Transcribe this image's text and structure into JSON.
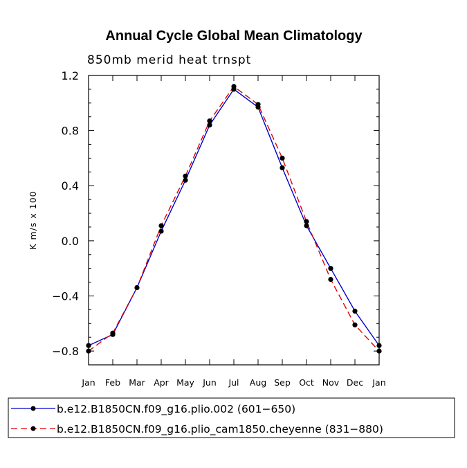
{
  "chart_data": {
    "type": "line",
    "title": "Annual Cycle Global Mean Climatology",
    "subtitle": "850mb merid heat trnspt",
    "xlabel": "",
    "ylabel": "K m/s x 100",
    "categories": [
      "Jan",
      "Feb",
      "Mar",
      "Apr",
      "May",
      "Jun",
      "Jul",
      "Aug",
      "Sep",
      "Oct",
      "Nov",
      "Dec",
      "Jan"
    ],
    "ylim": [
      -0.9,
      1.2
    ],
    "yticks": [
      -0.8,
      -0.4,
      0.0,
      0.4,
      0.8,
      1.2
    ],
    "ytick_labels": [
      "−0.8",
      "−0.4",
      "0.0",
      "0.4",
      "0.8",
      "1.2"
    ],
    "legend_position": "bottom",
    "series": [
      {
        "name": "b.e12.B1850CN.f09_g16.plio.002 (601−650)",
        "color": "#0000cc",
        "dash": "solid",
        "values": [
          -0.76,
          -0.68,
          -0.34,
          0.07,
          0.44,
          0.84,
          1.1,
          0.97,
          0.53,
          0.11,
          -0.2,
          -0.51,
          -0.76
        ]
      },
      {
        "name": "b.e12.B1850CN.f09_g16.plio_cam1850.cheyenne (831−880)",
        "color": "#dd0000",
        "dash": "dashed",
        "values": [
          -0.8,
          -0.67,
          -0.34,
          0.11,
          0.47,
          0.87,
          1.12,
          0.99,
          0.6,
          0.14,
          -0.28,
          -0.61,
          -0.8
        ]
      }
    ]
  }
}
